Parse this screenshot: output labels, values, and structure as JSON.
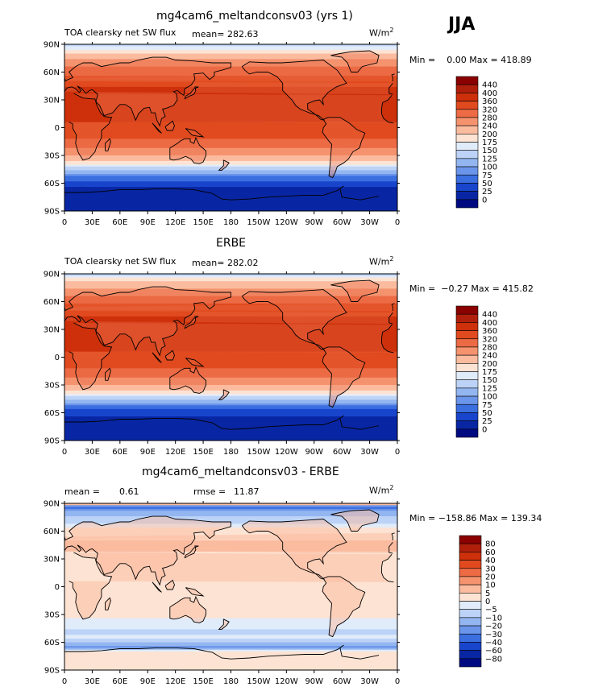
{
  "season": "JJA",
  "panels": [
    {
      "title": "mg4cam6_meltandconsv03 (yrs 1)",
      "subtitle": "TOA clearsky net SW flux",
      "stat_left": "mean=",
      "stat_left_value": "282.63",
      "stat_right": "",
      "stat_right_value": "",
      "units_base": "W/m",
      "units_exp": "2",
      "minmax": "Min =    0.00 Max = 418.89"
    },
    {
      "title": "ERBE",
      "subtitle": "TOA clearsky net SW flux",
      "stat_left": "mean=",
      "stat_left_value": "282.02",
      "stat_right": "",
      "stat_right_value": "",
      "units_base": "W/m",
      "units_exp": "2",
      "minmax": "Min =  −0.27 Max = 415.82"
    },
    {
      "title": "mg4cam6_meltandconsv03 - ERBE",
      "subtitle": "",
      "stat_left": "mean =",
      "stat_left_value": "0.61",
      "stat_right": "rmse =",
      "stat_right_value": "11.87",
      "units_base": "W/m",
      "units_exp": "2",
      "minmax": "Min = −158.86 Max = 139.34"
    }
  ],
  "chart_data": [
    {
      "type": "heatmap",
      "title": "mg4cam6_meltandconsv03 (yrs 1)",
      "variable": "TOA clearsky net SW flux",
      "units": "W/m2",
      "mean": 282.63,
      "min": 0.0,
      "max": 418.89,
      "xticks": [
        "0",
        "30E",
        "60E",
        "90E",
        "120E",
        "150E",
        "180",
        "150W",
        "120W",
        "90W",
        "60W",
        "30W",
        "0"
      ],
      "yticks": [
        "90N",
        "60N",
        "30N",
        "0",
        "30S",
        "60S",
        "90S"
      ],
      "colorbar_levels": [
        "440",
        "400",
        "360",
        "320",
        "280",
        "240",
        "200",
        "175",
        "150",
        "125",
        "100",
        "75",
        "50",
        "25",
        "0"
      ],
      "colorbar_colors": [
        "#8b0000",
        "#b01f0c",
        "#cd300a",
        "#e04a1e",
        "#ec6a44",
        "#f5936f",
        "#fbbb9f",
        "#fde3d3",
        "#e1ecfb",
        "#bcd3f7",
        "#93b6f1",
        "#6b95ea",
        "#3b6fe0",
        "#1845cc",
        "#0826a3",
        "#000a80"
      ],
      "lat_profile": [
        {
          "lat": 90,
          "v": 120
        },
        {
          "lat": 85,
          "v": 170
        },
        {
          "lat": 78,
          "v": 215
        },
        {
          "lat": 70,
          "v": 260
        },
        {
          "lat": 60,
          "v": 310
        },
        {
          "lat": 50,
          "v": 340
        },
        {
          "lat": 40,
          "v": 370
        },
        {
          "lat": 30,
          "v": 385
        },
        {
          "lat": 20,
          "v": 380
        },
        {
          "lat": 10,
          "v": 365
        },
        {
          "lat": 0,
          "v": 350
        },
        {
          "lat": -10,
          "v": 330
        },
        {
          "lat": -20,
          "v": 290
        },
        {
          "lat": -28,
          "v": 250
        },
        {
          "lat": -34,
          "v": 210
        },
        {
          "lat": -40,
          "v": 170
        },
        {
          "lat": -44,
          "v": 140
        },
        {
          "lat": -48,
          "v": 110
        },
        {
          "lat": -52,
          "v": 80
        },
        {
          "lat": -56,
          "v": 55
        },
        {
          "lat": -62,
          "v": 30
        },
        {
          "lat": -70,
          "v": 12
        },
        {
          "lat": -80,
          "v": 2
        },
        {
          "lat": -90,
          "v": 0
        }
      ]
    },
    {
      "type": "heatmap",
      "title": "ERBE",
      "variable": "TOA clearsky net SW flux",
      "units": "W/m2",
      "mean": 282.02,
      "min": -0.27,
      "max": 415.82,
      "xticks": [
        "0",
        "30E",
        "60E",
        "90E",
        "120E",
        "150E",
        "180",
        "150W",
        "120W",
        "90W",
        "60W",
        "30W",
        "0"
      ],
      "yticks": [
        "90N",
        "60N",
        "30N",
        "0",
        "30S",
        "60S",
        "90S"
      ],
      "colorbar_levels": [
        "440",
        "400",
        "360",
        "320",
        "280",
        "240",
        "200",
        "175",
        "150",
        "125",
        "100",
        "75",
        "50",
        "25",
        "0"
      ],
      "colorbar_colors": [
        "#8b0000",
        "#b01f0c",
        "#cd300a",
        "#e04a1e",
        "#ec6a44",
        "#f5936f",
        "#fbbb9f",
        "#fde3d3",
        "#e1ecfb",
        "#bcd3f7",
        "#93b6f1",
        "#6b95ea",
        "#3b6fe0",
        "#1845cc",
        "#0826a3",
        "#000a80"
      ],
      "lat_profile": [
        {
          "lat": 90,
          "v": 130
        },
        {
          "lat": 85,
          "v": 175
        },
        {
          "lat": 78,
          "v": 220
        },
        {
          "lat": 70,
          "v": 265
        },
        {
          "lat": 60,
          "v": 312
        },
        {
          "lat": 50,
          "v": 342
        },
        {
          "lat": 40,
          "v": 372
        },
        {
          "lat": 30,
          "v": 386
        },
        {
          "lat": 20,
          "v": 382
        },
        {
          "lat": 10,
          "v": 366
        },
        {
          "lat": 0,
          "v": 352
        },
        {
          "lat": -10,
          "v": 330
        },
        {
          "lat": -20,
          "v": 292
        },
        {
          "lat": -28,
          "v": 252
        },
        {
          "lat": -34,
          "v": 212
        },
        {
          "lat": -40,
          "v": 172
        },
        {
          "lat": -44,
          "v": 140
        },
        {
          "lat": -48,
          "v": 110
        },
        {
          "lat": -52,
          "v": 80
        },
        {
          "lat": -56,
          "v": 50
        },
        {
          "lat": -62,
          "v": 28
        },
        {
          "lat": -70,
          "v": 10
        },
        {
          "lat": -80,
          "v": 2
        },
        {
          "lat": -90,
          "v": 0
        }
      ]
    },
    {
      "type": "heatmap",
      "title": "mg4cam6_meltandconsv03 - ERBE",
      "units": "W/m2",
      "mean": 0.61,
      "rmse": 11.87,
      "min": -158.86,
      "max": 139.34,
      "xticks": [
        "0",
        "30E",
        "60E",
        "90E",
        "120E",
        "150E",
        "180",
        "150W",
        "120W",
        "90W",
        "60W",
        "30W",
        "0"
      ],
      "yticks": [
        "90N",
        "60N",
        "30N",
        "0",
        "30S",
        "60S",
        "90S"
      ],
      "colorbar_levels": [
        "80",
        "60",
        "40",
        "30",
        "20",
        "10",
        "5",
        "0",
        "−5",
        "−10",
        "−20",
        "−30",
        "−40",
        "−60",
        "−80"
      ],
      "colorbar_colors": [
        "#8b0000",
        "#b01f0c",
        "#cd300a",
        "#e04a1e",
        "#ec6a44",
        "#f5936f",
        "#fbbb9f",
        "#fde3d3",
        "#e1ecfb",
        "#bcd3f7",
        "#93b6f1",
        "#6b95ea",
        "#3b6fe0",
        "#1845cc",
        "#0826a3",
        "#000a80"
      ],
      "lat_profile": [
        {
          "lat": 90,
          "v": 20
        },
        {
          "lat": 86,
          "v": -35
        },
        {
          "lat": 80,
          "v": -12
        },
        {
          "lat": 70,
          "v": -6
        },
        {
          "lat": 60,
          "v": 3
        },
        {
          "lat": 45,
          "v": 6
        },
        {
          "lat": 30,
          "v": 4
        },
        {
          "lat": 15,
          "v": 2
        },
        {
          "lat": 0,
          "v": 3
        },
        {
          "lat": -15,
          "v": 4
        },
        {
          "lat": -30,
          "v": 2
        },
        {
          "lat": -40,
          "v": -3
        },
        {
          "lat": -48,
          "v": -6
        },
        {
          "lat": -55,
          "v": -4
        },
        {
          "lat": -60,
          "v": -8
        },
        {
          "lat": -65,
          "v": -22
        },
        {
          "lat": -70,
          "v": 4
        },
        {
          "lat": -80,
          "v": 1
        },
        {
          "lat": -90,
          "v": 0
        }
      ]
    }
  ]
}
